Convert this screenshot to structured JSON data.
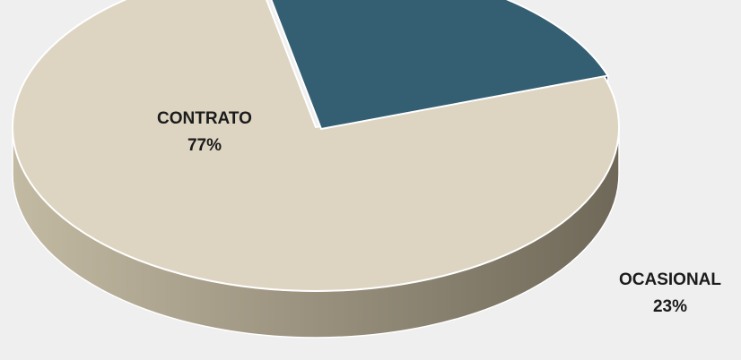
{
  "chart_data": {
    "type": "pie",
    "title": "",
    "legend": "none",
    "background": "#efefef",
    "slices": [
      {
        "label": "CONTRATO",
        "value": 77,
        "value_label": "77%",
        "color": "#ddd5c2",
        "side_light": "#c3baa3",
        "side_dark": "#6f6858"
      },
      {
        "label": "OCASIONAL",
        "value": 23,
        "value_label": "23%",
        "color": "#345f72",
        "side_light": "#1e3a46",
        "side_dark": "#152730"
      }
    ]
  }
}
